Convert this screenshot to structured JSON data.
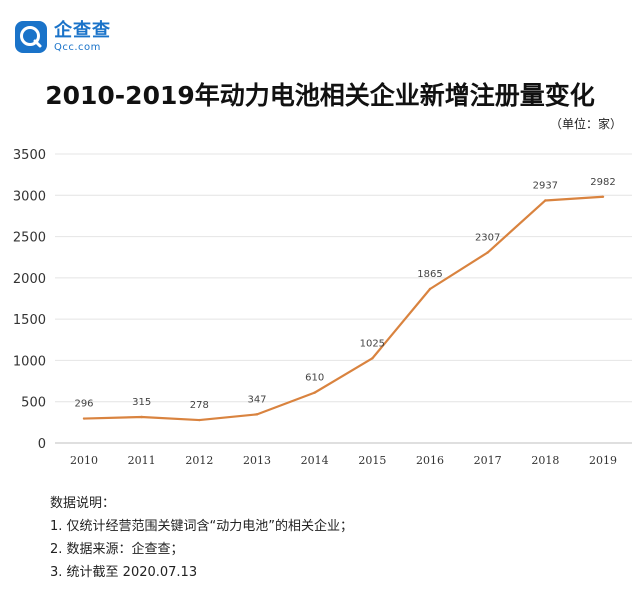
{
  "logo": {
    "name": "企查查",
    "domain": "Qcc.com",
    "color": "#1a73c9"
  },
  "unit_label": "（单位：家）",
  "notes": {
    "heading": "数据说明：",
    "items": [
      "1. 仅统计经营范围关键词含“动力电池”的相关企业；",
      "2. 数据来源：企查查；",
      "3. 统计截至 2020.07.13"
    ]
  },
  "chart_data": {
    "type": "line",
    "title": "2010-2019年动力电池相关企业新增注册量变化",
    "xlabel": "",
    "ylabel": "",
    "categories": [
      "2010",
      "2011",
      "2012",
      "2013",
      "2014",
      "2015",
      "2016",
      "2017",
      "2018",
      "2019"
    ],
    "series": [
      {
        "values": [
          296,
          315,
          278,
          347,
          610,
          1025,
          1865,
          2307,
          2937,
          2982
        ],
        "color": "#d9833f"
      }
    ],
    "ylim": [
      0,
      3500
    ],
    "yticks": [
      0,
      500,
      1000,
      1500,
      2000,
      2500,
      3000,
      3500
    ],
    "grid": true,
    "data_labels": true
  }
}
